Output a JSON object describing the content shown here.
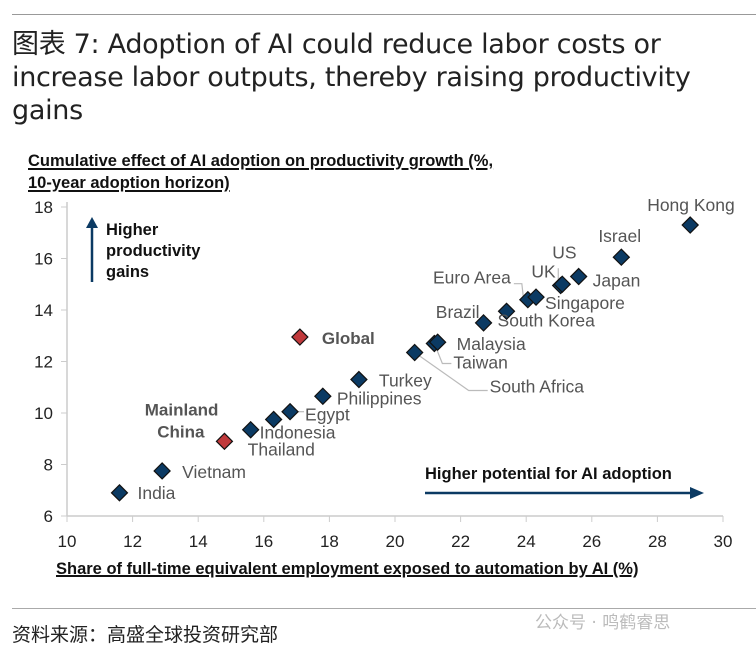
{
  "header": {
    "title": "图表 7: Adoption of AI could reduce labor costs or increase labor outputs, thereby raising productivity gains"
  },
  "chart_data": {
    "type": "scatter",
    "title": [
      "Cumulative effect  of AI adoption on productivity growth (%,",
      "10-year adoption horizon)"
    ],
    "xlabel": "Share of full-time equivalent employment exposed to automation by AI (%)",
    "ylabel": "",
    "xlim": [
      10,
      30
    ],
    "ylim": [
      6,
      18
    ],
    "xticks": [
      "10",
      "12",
      "14",
      "16",
      "18",
      "20",
      "22",
      "24",
      "26",
      "28",
      "30"
    ],
    "yticks": [
      "6",
      "8",
      "10",
      "12",
      "14",
      "16",
      "18"
    ],
    "annotations": {
      "up": "Higher productivity gains",
      "right": "Higher potential for AI adoption"
    },
    "colors": {
      "country": "#0b3a63",
      "highlight": "#c0393b",
      "arrow": "#0b3a63"
    },
    "points": [
      {
        "label": "India",
        "x": 11.6,
        "y": 6.9,
        "highlight": false
      },
      {
        "label": "Vietnam",
        "x": 12.9,
        "y": 7.75,
        "highlight": false
      },
      {
        "label": "Mainland China",
        "x": 14.8,
        "y": 8.9,
        "highlight": true
      },
      {
        "label": "Thailand",
        "x": 15.6,
        "y": 9.35,
        "highlight": false
      },
      {
        "label": "Indonesia",
        "x": 16.3,
        "y": 9.75,
        "highlight": false
      },
      {
        "label": "Egypt",
        "x": 16.8,
        "y": 10.05,
        "highlight": false
      },
      {
        "label": "Philippines",
        "x": 17.8,
        "y": 10.65,
        "highlight": false
      },
      {
        "label": "Turkey",
        "x": 18.9,
        "y": 11.3,
        "highlight": false
      },
      {
        "label": "Global",
        "x": 17.1,
        "y": 12.95,
        "highlight": true
      },
      {
        "label": "South Africa",
        "x": 20.6,
        "y": 12.35,
        "highlight": false
      },
      {
        "label": "Taiwan",
        "x": 21.2,
        "y": 12.7,
        "highlight": false
      },
      {
        "label": "Malaysia",
        "x": 21.3,
        "y": 12.75,
        "highlight": false
      },
      {
        "label": "Brazil",
        "x": 22.7,
        "y": 13.5,
        "highlight": false
      },
      {
        "label": "South Korea",
        "x": 23.4,
        "y": 13.95,
        "highlight": false
      },
      {
        "label": "Euro Area",
        "x": 24.05,
        "y": 14.4,
        "highlight": false
      },
      {
        "label": "Singapore",
        "x": 24.3,
        "y": 14.5,
        "highlight": false
      },
      {
        "label": "UK",
        "x": 25.05,
        "y": 14.95,
        "highlight": false
      },
      {
        "label": "US",
        "x": 25.1,
        "y": 15.0,
        "highlight": false
      },
      {
        "label": "Japan",
        "x": 25.6,
        "y": 15.3,
        "highlight": false
      },
      {
        "label": "Israel",
        "x": 26.9,
        "y": 16.05,
        "highlight": false
      },
      {
        "label": "Hong Kong",
        "x": 29.0,
        "y": 17.3,
        "highlight": false
      }
    ]
  },
  "footer": {
    "source": "资料来源：高盛全球投资研究部",
    "watermark": "公众号 · 鸣鹤睿思"
  }
}
